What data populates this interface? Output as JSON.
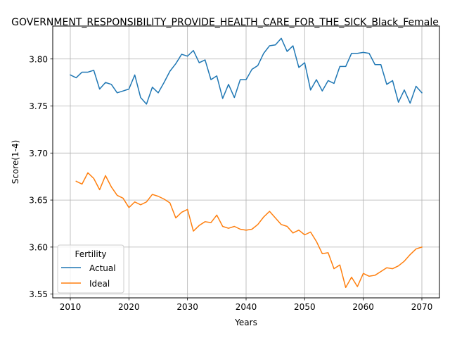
{
  "chart_data": {
    "type": "line",
    "title": "GOVERNMENT_RESPONSIBILITY_PROVIDE_HEALTH_CARE_FOR_THE_SICK_Black_Female",
    "xlabel": "Years",
    "ylabel": "Score(1-4)",
    "xlim": [
      2007,
      2073
    ],
    "ylim": [
      3.546,
      3.835
    ],
    "xticks": [
      2010,
      2020,
      2030,
      2040,
      2050,
      2060,
      2070
    ],
    "yticks": [
      3.55,
      3.6,
      3.65,
      3.7,
      3.75,
      3.8
    ],
    "ytick_labels": [
      "3.55",
      "3.60",
      "3.65",
      "3.70",
      "3.75",
      "3.80"
    ],
    "grid": true,
    "legend": {
      "title": "Fertility",
      "placement": "lower-left"
    },
    "series": [
      {
        "name": "Actual",
        "color": "#1f77b4",
        "x": [
          2010,
          2011,
          2012,
          2013,
          2014,
          2015,
          2016,
          2017,
          2018,
          2019,
          2020,
          2021,
          2022,
          2023,
          2024,
          2025,
          2026,
          2027,
          2028,
          2029,
          2030,
          2031,
          2032,
          2033,
          2034,
          2035,
          2036,
          2037,
          2038,
          2039,
          2040,
          2041,
          2042,
          2043,
          2044,
          2045,
          2046,
          2047,
          2048,
          2049,
          2050,
          2051,
          2052,
          2053,
          2054,
          2055,
          2056,
          2057,
          2058,
          2059,
          2060,
          2061,
          2062,
          2063,
          2064,
          2065,
          2066,
          2067,
          2068,
          2069,
          2070
        ],
        "values": [
          3.783,
          3.78,
          3.786,
          3.786,
          3.788,
          3.768,
          3.775,
          3.773,
          3.764,
          3.766,
          3.768,
          3.783,
          3.759,
          3.752,
          3.77,
          3.764,
          3.775,
          3.787,
          3.795,
          3.805,
          3.803,
          3.809,
          3.796,
          3.799,
          3.778,
          3.782,
          3.758,
          3.773,
          3.759,
          3.778,
          3.778,
          3.789,
          3.793,
          3.806,
          3.814,
          3.815,
          3.822,
          3.808,
          3.814,
          3.791,
          3.796,
          3.767,
          3.778,
          3.766,
          3.777,
          3.774,
          3.792,
          3.792,
          3.806,
          3.806,
          3.807,
          3.806,
          3.794,
          3.794,
          3.773,
          3.777,
          3.754,
          3.767,
          3.753,
          3.771,
          3.764
        ]
      },
      {
        "name": "Ideal",
        "color": "#ff7f0e",
        "x": [
          2011,
          2012,
          2013,
          2014,
          2015,
          2016,
          2017,
          2018,
          2019,
          2020,
          2021,
          2022,
          2023,
          2024,
          2025,
          2026,
          2027,
          2028,
          2029,
          2030,
          2031,
          2032,
          2033,
          2034,
          2035,
          2036,
          2037,
          2038,
          2039,
          2040,
          2041,
          2042,
          2043,
          2044,
          2045,
          2046,
          2047,
          2048,
          2049,
          2050,
          2051,
          2052,
          2053,
          2054,
          2055,
          2056,
          2057,
          2058,
          2059,
          2060,
          2061,
          2062,
          2063,
          2064,
          2065,
          2066,
          2067,
          2068,
          2069,
          2070
        ],
        "values": [
          3.67,
          3.667,
          3.679,
          3.673,
          3.661,
          3.676,
          3.664,
          3.655,
          3.652,
          3.642,
          3.648,
          3.645,
          3.648,
          3.656,
          3.654,
          3.651,
          3.647,
          3.631,
          3.637,
          3.64,
          3.617,
          3.623,
          3.627,
          3.626,
          3.634,
          3.622,
          3.62,
          3.622,
          3.619,
          3.618,
          3.619,
          3.624,
          3.632,
          3.638,
          3.631,
          3.624,
          3.622,
          3.615,
          3.618,
          3.613,
          3.616,
          3.606,
          3.593,
          3.594,
          3.577,
          3.581,
          3.557,
          3.568,
          3.558,
          3.572,
          3.569,
          3.57,
          3.574,
          3.578,
          3.577,
          3.58,
          3.585,
          3.592,
          3.598,
          3.6
        ]
      }
    ]
  }
}
